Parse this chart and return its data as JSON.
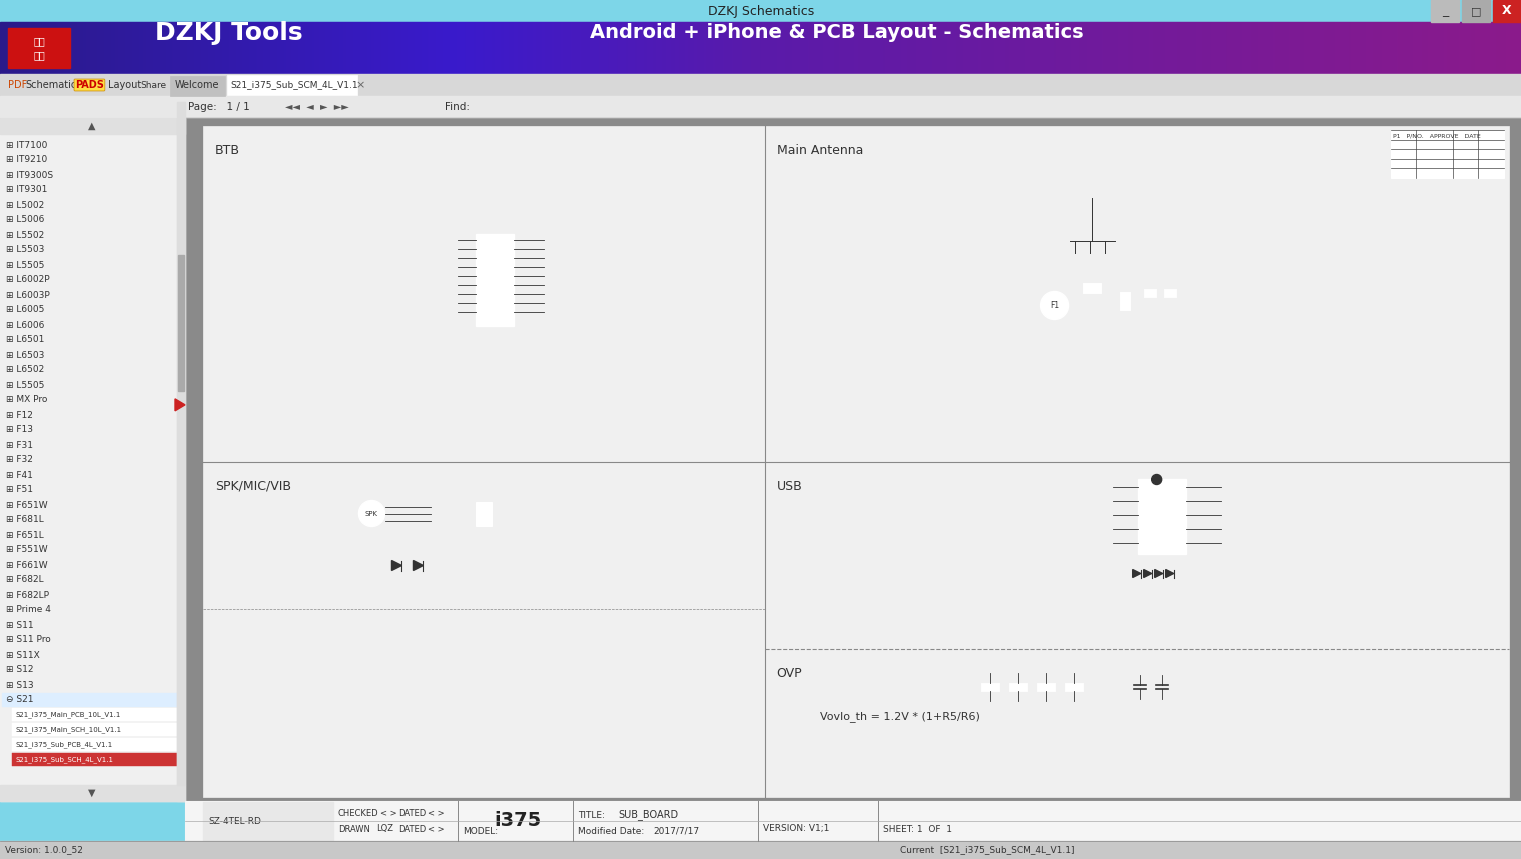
{
  "title_bar_text": "DZKJ Schematics",
  "title_bar_bg": "#7dd6e8",
  "header_bg_left": "#2a1a8a",
  "header_bg_right": "#8b1a8b",
  "header_logo_bg": "#cc1111",
  "header_logo_text": "DZKJ Tools",
  "header_right_text": "Android + iPhone & PCB Layout - Schematics",
  "toolbar_bg": "#e8e8e8",
  "tab_active": "S21_i375_Sub_SCM_4L_V1.1",
  "tabs": [
    "Welcome",
    "S21_i375_Sub_SCM_4L_V1.1"
  ],
  "sidebar_bg": "#f0f0f0",
  "sidebar_items": [
    "IT7100",
    "IT9210",
    "IT9300S",
    "IT9301",
    "L5002",
    "L5006",
    "L5502",
    "L5503",
    "L5505",
    "L6002P",
    "L6003P",
    "L6005",
    "L6006",
    "L6501",
    "L6503",
    "L6502",
    "L5505",
    "MX Pro",
    "F12",
    "F13",
    "F31",
    "F32",
    "F41",
    "F51",
    "F651W",
    "F681L",
    "F651L",
    "F551W",
    "F661W",
    "F682L",
    "F682LP",
    "Prime 4",
    "S11",
    "S11 Pro",
    "S11X",
    "S12",
    "S13",
    "S21"
  ],
  "content_bg": "#888888",
  "schematic_bg": "#f5f5f5",
  "section_labels": [
    "BTB",
    "Main Antenna",
    "SPK/MIC/VIB",
    "USB",
    "OVP"
  ],
  "bottom_bar_bg": "#d0d0d0",
  "bottom_fields": {
    "drawn": "DRAWN",
    "lqz": "LQZ",
    "dated1": "DATED",
    "checked": "CHECKED",
    "dated2": "DATED",
    "model_label": "MODEL:",
    "model_value": "i375",
    "modified_label": "Modified Date:",
    "modified_value": "2017/7/17",
    "title_label": "TITLE:",
    "title_value": "SUB_BOARD",
    "version_label": "VERSION: V1;1",
    "sheet_label": "SHEET: 1  OF  1"
  },
  "status_bar_bg": "#c8c8c8",
  "status_text": "Current  [S21_i375_Sub_SCM_4L_V1.1]",
  "version_text": "Version: 1.0.0_52",
  "schematic_formula": "Vovlo_th = 1.2V * (1+R5/R6)",
  "sz_4tel_rd": "SZ-4TEL-RD"
}
